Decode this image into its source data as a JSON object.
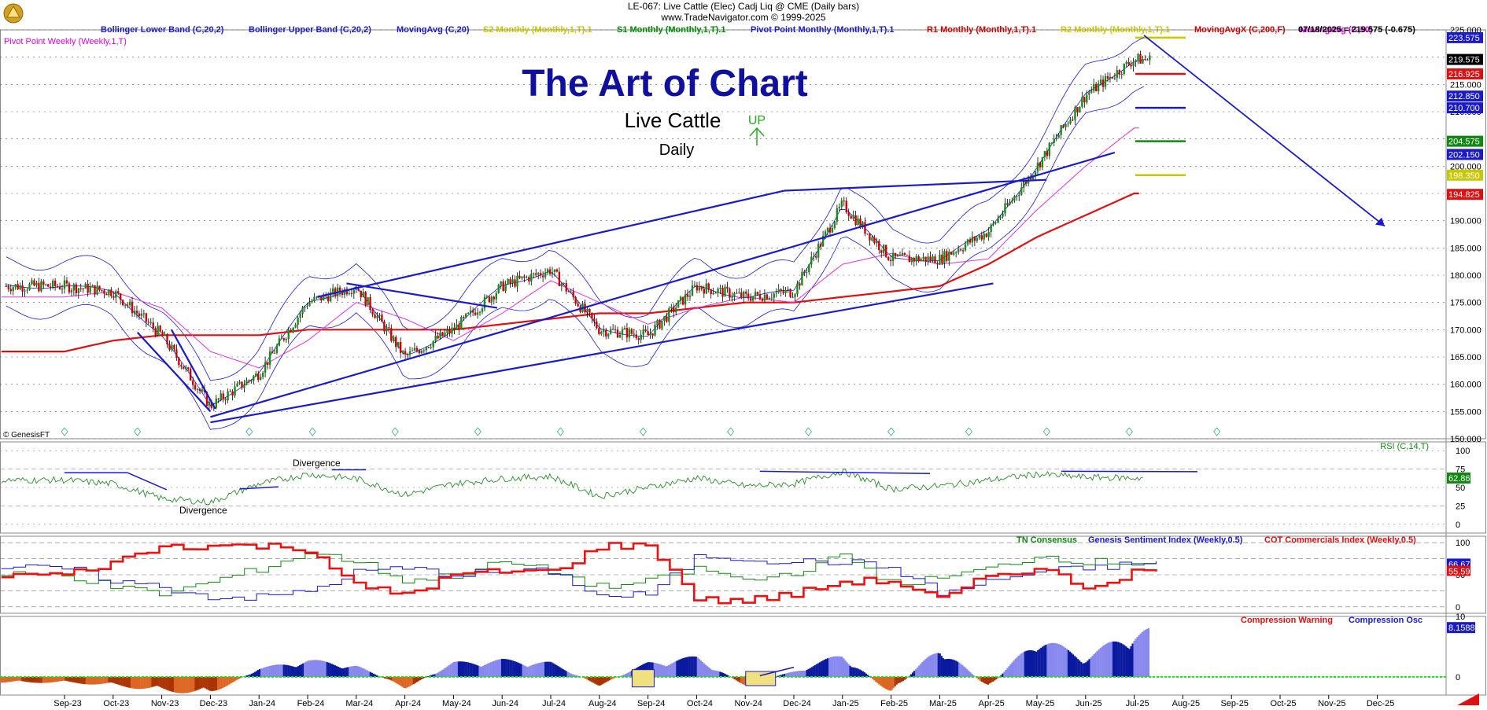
{
  "header": {
    "line1": "LE-067:  Live Cattle (Elec) Cadj Liq @ CME  (Daily bars)",
    "line2": "www.TradeNavigator.com © 1999-2025"
  },
  "legend": [
    {
      "text": "Bollinger Lower Band (C,20,2)",
      "color": "#1a1acc"
    },
    {
      "text": "Bollinger Upper Band (C,20,2)",
      "color": "#1a1acc"
    },
    {
      "text": "MovingAvg (C,20)",
      "color": "#1a1acc"
    },
    {
      "text": "S2 Monthly (Monthly,1,T).1",
      "color": "#c8c800"
    },
    {
      "text": "S1 Monthly (Monthly,1,T).1",
      "color": "#008800"
    },
    {
      "text": "Pivot Point Monthly (Monthly,1,T).1",
      "color": "#1a1acc"
    },
    {
      "text": "R1 Monthly (Monthly,1,T).1",
      "color": "#cc0000"
    },
    {
      "text": "R2 Monthly (Monthly,1,T).1",
      "color": "#c8c800"
    },
    {
      "text": "MovingAvgX (C,200,F)",
      "color": "#cc0000"
    },
    {
      "text": "MovingAvg (C,50)",
      "color": "#dd00dd"
    }
  ],
  "last_price_label": "07/18/2025 = 219.575 (-0.675)",
  "pivot_weekly_label": "Pivot Point Weekly (Weekly,1,T)",
  "copyright": "© GenesisFT",
  "annotations": {
    "title": "The Art of Chart",
    "subtitle": "Live Cattle",
    "period": "Daily",
    "trend": "UP",
    "divergence_top": "Divergence",
    "divergence_bottom": "Divergence"
  },
  "colors": {
    "title_blue": "#1010a0",
    "trend_green": "#22aa22",
    "candle_up": "#1a8a1a",
    "candle_down": "#cc0000",
    "trendline": "#1a1acc",
    "ma200": "#dd1111",
    "ma50": "#dd33dd",
    "rsi": "#2a8a2a",
    "cot": "#ee1111"
  },
  "chart_data": [
    {
      "type": "line",
      "title": "LE-067:  Live Cattle (Elec) Cadj Liq @ CME  (Daily bars)",
      "x": [
        "Sep-23",
        "Oct-23",
        "Nov-23",
        "Dec-23",
        "Jan-24",
        "Feb-24",
        "Mar-24",
        "Apr-24",
        "May-24",
        "Jun-24",
        "Jul-24",
        "Aug-24",
        "Sep-24",
        "Oct-24",
        "Nov-24",
        "Dec-24",
        "Jan-25",
        "Feb-25",
        "Mar-25",
        "Apr-25",
        "May-25",
        "Jun-25",
        "Jul-25",
        "Aug-25",
        "Sep-25",
        "Oct-25",
        "Nov-25",
        "Dec-25"
      ],
      "ylim": [
        150,
        225
      ],
      "y_ticks": [
        "225.000",
        "220.000",
        "215.000",
        "210.000",
        "205.000",
        "200.000",
        "195.000",
        "190.000",
        "185.000",
        "180.000",
        "175.000",
        "170.000",
        "165.000",
        "160.000",
        "155.000",
        "150.000"
      ],
      "series": [
        {
          "name": "Close",
          "values": [
            178,
            177,
            169,
            156,
            162,
            175,
            178,
            165,
            170,
            178,
            181,
            170,
            169,
            178,
            176,
            177,
            193,
            183,
            183,
            188,
            200,
            213,
            219.575,
            null,
            null,
            null,
            null,
            null
          ]
        },
        {
          "name": "MovingAvgX (C,200,F)",
          "values": [
            166,
            168,
            169,
            169,
            169,
            170,
            170,
            170,
            170,
            171,
            172,
            173,
            173,
            174,
            175,
            175,
            176,
            177,
            178,
            182,
            187,
            191,
            195,
            null,
            null,
            null,
            null,
            null
          ]
        },
        {
          "name": "MovingAvg (C,50)",
          "values": [
            176,
            177,
            174,
            166,
            163,
            168,
            175,
            172,
            168,
            173,
            179,
            175,
            171,
            174,
            176,
            175,
            182,
            184,
            182,
            183,
            192,
            200,
            207,
            null,
            null,
            null,
            null,
            null
          ]
        }
      ],
      "right_axis_labels": [
        {
          "text": "223.575",
          "bg": "#1a1acc",
          "fg": "#ffffff"
        },
        {
          "text": "219.575",
          "bg": "#000000",
          "fg": "#ffffff"
        },
        {
          "text": "216.925",
          "bg": "#dd1111",
          "fg": "#ffffff"
        },
        {
          "text": "212.850",
          "bg": "#1a1acc",
          "fg": "#ffffff"
        },
        {
          "text": "210.700",
          "bg": "#1a1acc",
          "fg": "#ffffff"
        },
        {
          "text": "204.575",
          "bg": "#118811",
          "fg": "#ffffff"
        },
        {
          "text": "202.150",
          "bg": "#1a1acc",
          "fg": "#ffffff"
        },
        {
          "text": "198.350",
          "bg": "#c8c800",
          "fg": "#ffffff"
        },
        {
          "text": "194.825",
          "bg": "#dd1111",
          "fg": "#ffffff"
        }
      ],
      "levels": [
        {
          "name": "R2 Monthly",
          "value": 223.575
        },
        {
          "name": "R1 Monthly",
          "value": 216.925
        },
        {
          "name": "Pivot Point Monthly",
          "value": 210.7
        },
        {
          "name": "S1 Monthly",
          "value": 204.575
        },
        {
          "name": "S2 Monthly",
          "value": 198.35
        }
      ]
    },
    {
      "type": "line",
      "title": "RSI (C,14,T)",
      "ylim": [
        0,
        100
      ],
      "y_ticks": [
        "100",
        "75",
        "50",
        "25",
        "0"
      ],
      "current_label": "62.86",
      "series": [
        {
          "name": "RSI (C,14,T)",
          "values": [
            60,
            55,
            35,
            30,
            55,
            68,
            62,
            40,
            55,
            62,
            65,
            38,
            50,
            63,
            52,
            55,
            72,
            48,
            52,
            60,
            68,
            64,
            62.86,
            null,
            null,
            null,
            null,
            null
          ]
        }
      ]
    },
    {
      "type": "line",
      "title": "TN Consensus / Genesis Sentiment Index / COT Commercials Index",
      "ylim": [
        0,
        100
      ],
      "y_ticks": [
        "100",
        "50",
        "0"
      ],
      "legend": [
        "TN Consensus",
        "Genesis Sentiment Index (Weekly,0.5)",
        "COT Commercials Index (Weekly,0.5)"
      ],
      "current_labels": [
        "66.67",
        "55.59"
      ],
      "series": [
        {
          "name": "TN Consensus",
          "values": [
            50,
            30,
            20,
            40,
            60,
            85,
            70,
            40,
            50,
            70,
            55,
            30,
            40,
            60,
            40,
            55,
            80,
            35,
            45,
            60,
            80,
            70,
            70,
            null,
            null,
            null,
            null,
            null
          ]
        },
        {
          "name": "Genesis Sentiment Index (Weekly,0.5)",
          "values": [
            60,
            40,
            30,
            15,
            15,
            25,
            55,
            60,
            50,
            55,
            55,
            15,
            20,
            80,
            75,
            70,
            70,
            60,
            20,
            40,
            55,
            60,
            66.67,
            null,
            null,
            null,
            null,
            null
          ]
        },
        {
          "name": "COT Commercials Index (Weekly,0.5)",
          "values": [
            50,
            70,
            95,
            95,
            95,
            90,
            30,
            20,
            50,
            55,
            55,
            95,
            95,
            10,
            10,
            20,
            40,
            40,
            10,
            50,
            60,
            30,
            55.59,
            null,
            null,
            null,
            null,
            null
          ]
        }
      ]
    },
    {
      "type": "area",
      "title": "Compression Warning / Compression Osc",
      "ylim": [
        -3,
        10
      ],
      "y_ticks": [
        "10",
        "0"
      ],
      "legend": [
        "Compression Warning",
        "Compression Osc"
      ],
      "current_label": "8.1588",
      "series": [
        {
          "name": "Compression Osc",
          "values": [
            -1,
            -1.5,
            -2.5,
            -3,
            1.5,
            3,
            2,
            -2,
            2.5,
            3,
            2.5,
            -1.5,
            2.5,
            3.5,
            -1.5,
            1,
            4,
            -3,
            5.5,
            -2,
            7,
            3.5,
            8.1588,
            null,
            null,
            null,
            null,
            null
          ]
        }
      ]
    }
  ]
}
